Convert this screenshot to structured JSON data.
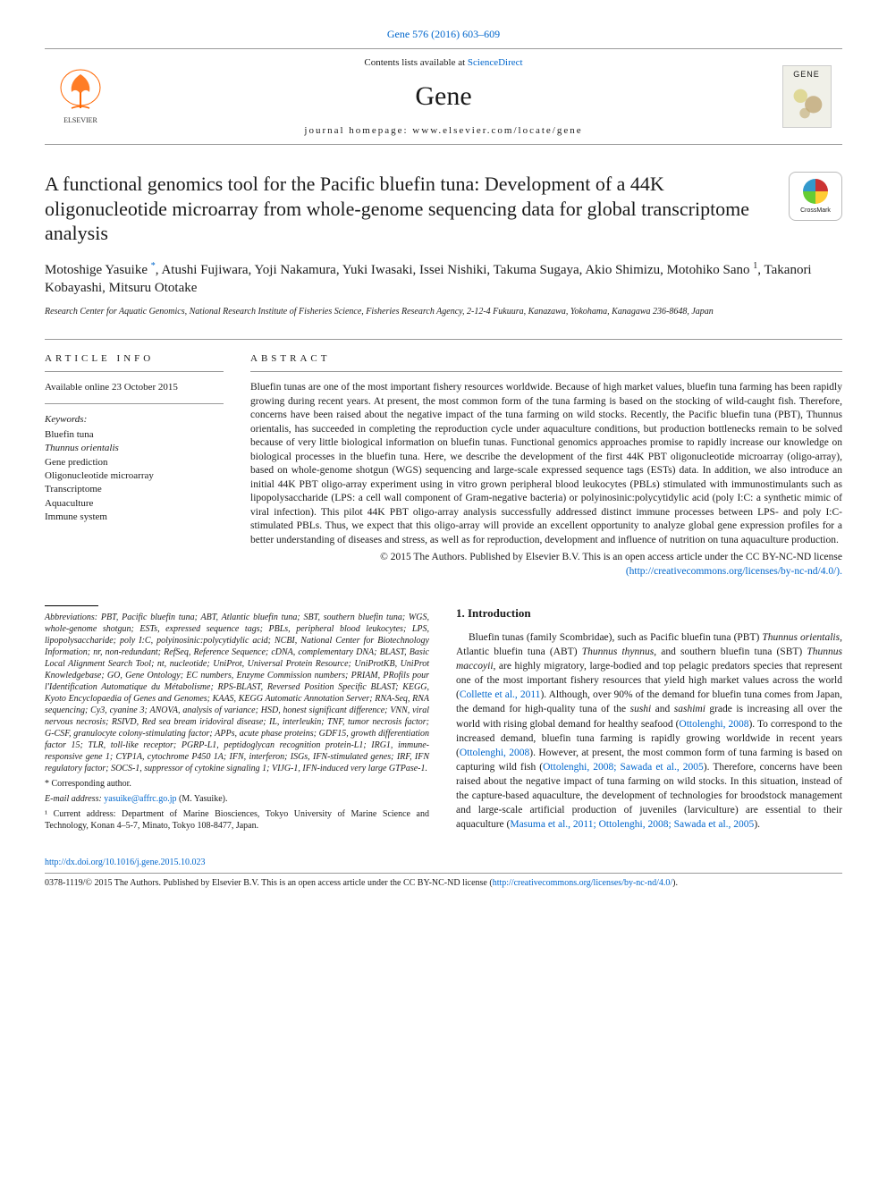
{
  "citation_header": "Gene 576 (2016) 603–609",
  "masthead": {
    "contents_line_pre": "Contents lists available at ",
    "contents_line_link": "ScienceDirect",
    "journal_name": "Gene",
    "homepage_line": "journal homepage: www.elsevier.com/locate/gene",
    "cover_label": "GENE"
  },
  "crossmark_label": "CrossMark",
  "title": "A functional genomics tool for the Pacific bluefin tuna: Development of a 44K oligonucleotide microarray from whole-genome sequencing data for global transcriptome analysis",
  "authors_html": "Motoshige Yasuike <sup class='asterisk'>*</sup>, Atushi Fujiwara, Yoji Nakamura, Yuki Iwasaki, Issei Nishiki, Takuma Sugaya, Akio Shimizu, Motohiko Sano <sup>1</sup>, Takanori Kobayashi, Mitsuru Ototake",
  "affiliation": "Research Center for Aquatic Genomics, National Research Institute of Fisheries Science, Fisheries Research Agency, 2-12-4 Fukuura, Kanazawa, Yokohama, Kanagawa 236-8648, Japan",
  "info": {
    "label": "article info",
    "available": "Available online 23 October 2015",
    "kw_heading": "Keywords:",
    "keywords": "Bluefin tuna\nThunnus orientalis\nGene prediction\nOligonucleotide microarray\nTranscriptome\nAquaculture\nImmune system"
  },
  "abstract": {
    "label": "abstract",
    "text": "Bluefin tunas are one of the most important fishery resources worldwide. Because of high market values, bluefin tuna farming has been rapidly growing during recent years. At present, the most common form of the tuna farming is based on the stocking of wild-caught fish. Therefore, concerns have been raised about the negative impact of the tuna farming on wild stocks. Recently, the Pacific bluefin tuna (PBT), Thunnus orientalis, has succeeded in completing the reproduction cycle under aquaculture conditions, but production bottlenecks remain to be solved because of very little biological information on bluefin tunas. Functional genomics approaches promise to rapidly increase our knowledge on biological processes in the bluefin tuna. Here, we describe the development of the first 44K PBT oligonucleotide microarray (oligo-array), based on whole-genome shotgun (WGS) sequencing and large-scale expressed sequence tags (ESTs) data. In addition, we also introduce an initial 44K PBT oligo-array experiment using in vitro grown peripheral blood leukocytes (PBLs) stimulated with immunostimulants such as lipopolysaccharide (LPS: a cell wall component of Gram-negative bacteria) or polyinosinic:polycytidylic acid (poly I:C: a synthetic mimic of viral infection). This pilot 44K PBT oligo-array analysis successfully addressed distinct immune processes between LPS- and poly I:C- stimulated PBLs. Thus, we expect that this oligo-array will provide an excellent opportunity to analyze global gene expression profiles for a better understanding of diseases and stress, as well as for reproduction, development and influence of nutrition on tuna aquaculture production.",
    "copyright": "© 2015 The Authors. Published by Elsevier B.V. This is an open access article under the CC BY-NC-ND license",
    "license_url": "(http://creativecommons.org/licenses/by-nc-nd/4.0/)."
  },
  "intro": {
    "heading": "1. Introduction",
    "para1": "Bluefin tunas (family Scombridae), such as Pacific bluefin tuna (PBT) Thunnus orientalis, Atlantic bluefin tuna (ABT) Thunnus thynnus, and southern bluefin tuna (SBT) Thunnus maccoyii, are highly migratory, large-bodied and top pelagic predators species that represent one of the most important fishery resources that yield high market values across the world (Collette et al., 2011). Although, over 90% of the demand for bluefin tuna comes from Japan, the demand for high-quality tuna of the sushi and sashimi grade is increasing all over the world with rising global demand for healthy seafood (Ottolenghi, 2008). To correspond to the increased demand, bluefin tuna farming is rapidly growing worldwide in recent years (Ottolenghi, 2008). However, at present, the most common form of tuna farming is based on capturing wild fish (Ottolenghi, 2008; Sawada et al., 2005). Therefore, concerns have been raised about the negative impact of tuna farming on wild stocks. In this situation, instead of the capture-based aquaculture, the development of technologies for broodstock management and large-scale artificial production of juveniles (larviculture) are essential to their aquaculture (Masuma et al., 2011; Ottolenghi, 2008; Sawada et al., 2005)."
  },
  "footnotes": {
    "abbrev": "Abbreviations: PBT, Pacific bluefin tuna; ABT, Atlantic bluefin tuna; SBT, southern bluefin tuna; WGS, whole-genome shotgun; ESTs, expressed sequence tags; PBLs, peripheral blood leukocytes; LPS, lipopolysaccharide; poly I:C, polyinosinic:polycytidylic acid; NCBI, National Center for Biotechnology Information; nr, non-redundant; RefSeq, Reference Sequence; cDNA, complementary DNA; BLAST, Basic Local Alignment Search Tool; nt, nucleotide; UniProt, Universal Protein Resource; UniProtKB, UniProt Knowledgebase; GO, Gene Ontology; EC numbers, Enzyme Commission numbers; PRIAM, PRofils pour l'Identification Automatique du Métabolisme; RPS-BLAST, Reversed Position Specific BLAST; KEGG, Kyoto Encyclopaedia of Genes and Genomes; KAAS, KEGG Automatic Annotation Server; RNA-Seq, RNA sequencing; Cy3, cyanine 3; ANOVA, analysis of variance; HSD, honest significant difference; VNN, viral nervous necrosis; RSIVD, Red sea bream iridoviral disease; IL, interleukin; TNF, tumor necrosis factor; G-CSF, granulocyte colony-stimulating factor; APPs, acute phase proteins; GDF15, growth differentiation factor 15; TLR, toll-like receptor; PGRP-L1, peptidoglycan recognition protein-L1; IRG1, immune-responsive gene 1; CYP1A, cytochrome P450 1A; IFN, interferon; ISGs, IFN-stimulated genes; IRF, IFN regulatory factor; SOCS-1, suppressor of cytokine signaling 1; VIJG-1, IFN-induced very large GTPase-1.",
    "corresp": "* Corresponding author.",
    "email_pre": "E-mail address: ",
    "email": "yasuike@affrc.go.jp",
    "email_post": " (M. Yasuike).",
    "note1": "¹ Current address: Department of Marine Biosciences, Tokyo University of Marine Science and Technology, Konan 4–5-7, Minato, Tokyo 108-8477, Japan."
  },
  "footer": {
    "doi": "http://dx.doi.org/10.1016/j.gene.2015.10.023",
    "issn_line": "0378-1119/© 2015 The Authors. Published by Elsevier B.V. This is an open access article under the CC BY-NC-ND license (",
    "issn_link": "http://creativecommons.org/licenses/by-nc-nd/4.0/",
    "issn_close": ")."
  },
  "colors": {
    "link": "#0066cc",
    "rule": "#999999",
    "text": "#1a1a1a",
    "logo_orange": "#ff6600"
  }
}
